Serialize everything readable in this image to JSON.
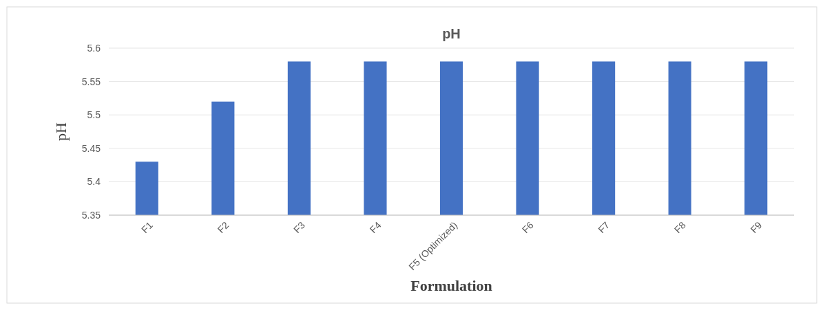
{
  "chart_data": {
    "type": "bar",
    "title": "pH",
    "xlabel": "Formulation",
    "ylabel": "pH",
    "categories": [
      "F1",
      "F2",
      "F3",
      "F4",
      "F5 (Optimized)",
      "F6",
      "F7",
      "F8",
      "F9"
    ],
    "values": [
      5.43,
      5.52,
      5.58,
      5.58,
      5.58,
      5.58,
      5.58,
      5.58,
      5.58
    ],
    "color": "#4472c4",
    "ylim": [
      5.35,
      5.6
    ],
    "yticks": [
      5.35,
      5.4,
      5.45,
      5.5,
      5.55,
      5.6
    ],
    "grid": "y"
  }
}
